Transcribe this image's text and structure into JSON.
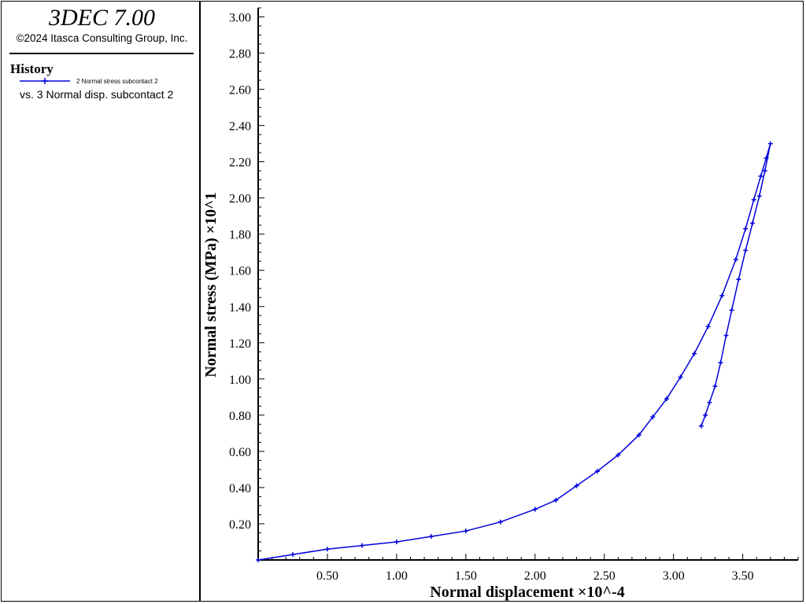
{
  "app": {
    "title": "3DEC 7.00",
    "copyright": "©2024 Itasca Consulting Group, Inc."
  },
  "legend": {
    "heading": "History",
    "series_label": "2 Normal stress subcontact 2",
    "vs_label": "vs. 3 Normal disp. subcontact 2",
    "color": "#0000dd"
  },
  "chart_data": {
    "type": "line",
    "xlabel": "Normal displacement ×10^-4",
    "ylabel": "Normal stress (MPa) ×10^1",
    "xlim": [
      0,
      3.9
    ],
    "ylim": [
      0,
      3.05
    ],
    "x_ticks": [
      "0.50",
      "1.00",
      "1.50",
      "2.00",
      "2.50",
      "3.00",
      "3.50"
    ],
    "x_tick_values": [
      0.5,
      1.0,
      1.5,
      2.0,
      2.5,
      3.0,
      3.5
    ],
    "y_ticks": [
      "0.20",
      "0.40",
      "0.60",
      "0.80",
      "1.00",
      "1.20",
      "1.40",
      "1.60",
      "1.80",
      "2.00",
      "2.20",
      "2.40",
      "2.60",
      "2.80",
      "3.00"
    ],
    "y_tick_values": [
      0.2,
      0.4,
      0.6,
      0.8,
      1.0,
      1.2,
      1.4,
      1.6,
      1.8,
      2.0,
      2.2,
      2.4,
      2.6,
      2.8,
      3.0
    ],
    "grid": false,
    "series": [
      {
        "name": "2 Normal stress subcontact 2",
        "color": "#0000dd",
        "marker": "+",
        "x": [
          0,
          0.25,
          0.5,
          0.75,
          1.0,
          1.25,
          1.5,
          1.75,
          2.0,
          2.15,
          2.3,
          2.45,
          2.6,
          2.75,
          2.85,
          2.95,
          3.05,
          3.15,
          3.25,
          3.35,
          3.45,
          3.52,
          3.58,
          3.63,
          3.67,
          3.7,
          3.66,
          3.62,
          3.57,
          3.52,
          3.47,
          3.42,
          3.38,
          3.34,
          3.3,
          3.26,
          3.23,
          3.2
        ],
        "y": [
          0,
          0.03,
          0.06,
          0.08,
          0.1,
          0.13,
          0.16,
          0.21,
          0.28,
          0.33,
          0.41,
          0.49,
          0.58,
          0.69,
          0.79,
          0.89,
          1.01,
          1.14,
          1.29,
          1.46,
          1.66,
          1.83,
          1.99,
          2.12,
          2.22,
          2.3,
          2.15,
          2.01,
          1.86,
          1.71,
          1.55,
          1.38,
          1.24,
          1.09,
          0.96,
          0.87,
          0.8,
          0.74
        ]
      }
    ]
  }
}
